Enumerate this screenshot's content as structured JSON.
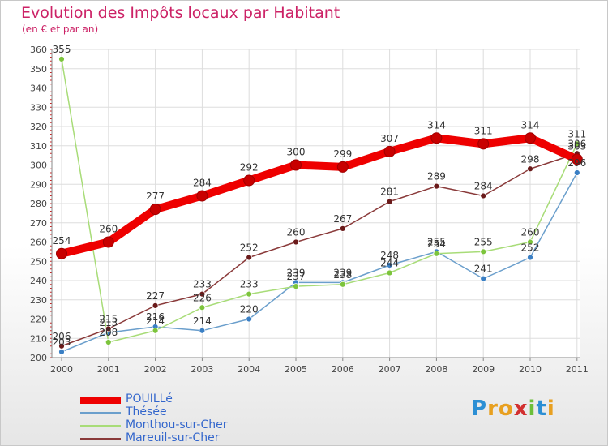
{
  "title": "Evolution des Impôts locaux par Habitant",
  "subtitle": "(en € et par an)",
  "logo": {
    "text": "Proxiti",
    "letters": [
      "P",
      "r",
      "o",
      "x",
      "i",
      "t",
      "i"
    ],
    "colors": [
      "#2c8fd4",
      "#e8a020",
      "#e8a020",
      "#d23030",
      "#6cbf3a",
      "#2c8fd4",
      "#e8a020"
    ]
  },
  "chart_data": {
    "type": "line",
    "x": [
      "2000",
      "2001",
      "2002",
      "2003",
      "2004",
      "2005",
      "2006",
      "2007",
      "2008",
      "2009",
      "2010",
      "2011"
    ],
    "ylim": [
      200,
      360
    ],
    "yticks": [
      200,
      210,
      220,
      230,
      240,
      250,
      260,
      270,
      280,
      290,
      300,
      310,
      320,
      330,
      340,
      350,
      360
    ],
    "grid": true,
    "legend_position": "bottom-left",
    "series": [
      {
        "name": "POUILLé",
        "color": "#ee0000",
        "dot_color": "#ee0000",
        "emphasis": true,
        "values": [
          254,
          260,
          277,
          284,
          292,
          300,
          299,
          307,
          314,
          311,
          314,
          303
        ],
        "labels": [
          "254",
          "260",
          "277",
          "284",
          "292",
          "300",
          "299",
          "307",
          "314",
          "311",
          "314",
          "303"
        ]
      },
      {
        "name": "Thésée",
        "color": "#6b9fcc",
        "dot_color": "#3a7fc4",
        "values": [
          203,
          213,
          216,
          214,
          220,
          239,
          239,
          248,
          255,
          241,
          252,
          296
        ],
        "labels": [
          "203",
          "213",
          "216",
          "214",
          "220",
          "239",
          "239",
          "248",
          "255",
          "241",
          "252",
          "296"
        ]
      },
      {
        "name": "Monthou-sur-Cher",
        "color": "#a8dc78",
        "dot_color": "#7cc43c",
        "values": [
          355,
          208,
          214,
          226,
          233,
          237,
          238,
          244,
          254,
          255,
          260,
          311
        ],
        "labels": [
          "355",
          "208",
          "214",
          "226",
          "233",
          "237",
          "238",
          "244",
          "254",
          "255",
          "260",
          "311"
        ]
      },
      {
        "name": "Mareuil-sur-Cher",
        "color": "#8a3a3a",
        "dot_color": "#6a1a1a",
        "values": [
          206,
          215,
          227,
          233,
          252,
          260,
          267,
          281,
          289,
          284,
          298,
          306
        ],
        "labels": [
          "206",
          "215",
          "227",
          "233",
          "252",
          "260",
          "267",
          "281",
          "289",
          "284",
          "298",
          "306"
        ]
      }
    ]
  }
}
